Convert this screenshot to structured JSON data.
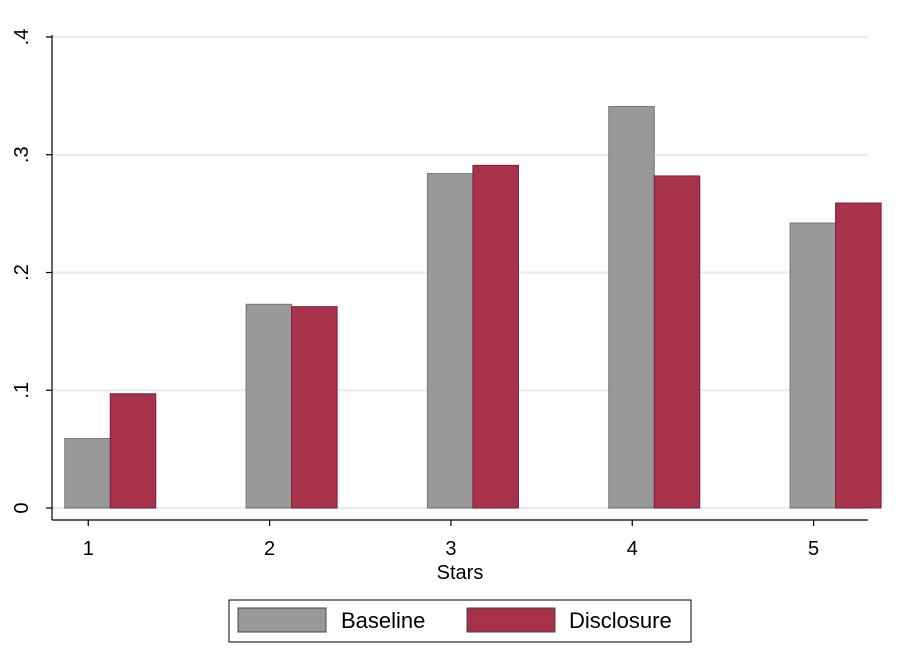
{
  "chart_data": {
    "type": "bar",
    "title": "",
    "xlabel": "Stars",
    "ylabel": "´",
    "categories": [
      1,
      2,
      3,
      4,
      5
    ],
    "x_tick_labels": [
      "1",
      "2",
      "3",
      "4",
      "5"
    ],
    "y_ticks": [
      0,
      0.1,
      0.2,
      0.3,
      0.4
    ],
    "y_tick_labels": [
      "0",
      ".1",
      ".2",
      ".3",
      ".4"
    ],
    "ylim": [
      0,
      0.4
    ],
    "xlim": [
      0.8,
      5.3
    ],
    "grid": true,
    "legend_position": "bottom",
    "series": [
      {
        "name": "Baseline",
        "values": [
          0.059,
          0.173,
          0.284,
          0.341,
          0.242
        ],
        "color": "#999999"
      },
      {
        "name": "Disclosure",
        "values": [
          0.097,
          0.171,
          0.291,
          0.282,
          0.259
        ],
        "color": "#a8324c"
      }
    ]
  }
}
